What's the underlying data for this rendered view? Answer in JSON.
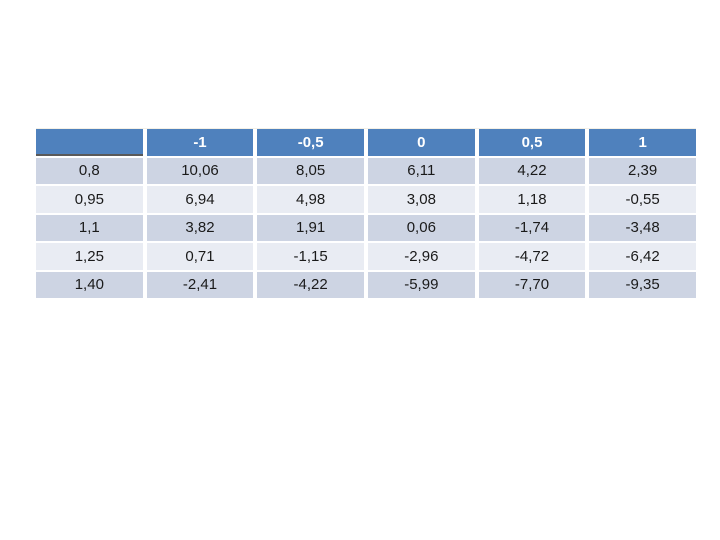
{
  "slide": {
    "background": "#FFFFFF"
  },
  "colors": {
    "header_bg": "#4F81BD",
    "header_text": "#FFFFFF",
    "band_dark": "#CDD4E3",
    "band_light": "#E9ECF3",
    "cell_text": "#1A1A1A",
    "corner_border": "#595959",
    "gap": "#FFFFFF"
  },
  "chart_data": {
    "type": "table",
    "columns": [
      "",
      "-1",
      "-0,5",
      "0",
      "0,5",
      "1"
    ],
    "rows": [
      {
        "label": "0,8",
        "values": [
          "10,06",
          "8,05",
          "6,11",
          "4,22",
          "2,39"
        ]
      },
      {
        "label": "0,95",
        "values": [
          "6,94",
          "4,98",
          "3,08",
          "1,18",
          "-0,55"
        ]
      },
      {
        "label": "1,1",
        "values": [
          "3,82",
          "1,91",
          "0,06",
          "-1,74",
          "-3,48"
        ]
      },
      {
        "label": "1,25",
        "values": [
          "0,71",
          "-1,15",
          "-2,96",
          "-4,72",
          "-6,42"
        ]
      },
      {
        "label": "1,40",
        "values": [
          "-2,41",
          "-4,22",
          "-5,99",
          "-7,70",
          "-9,35"
        ]
      }
    ]
  }
}
